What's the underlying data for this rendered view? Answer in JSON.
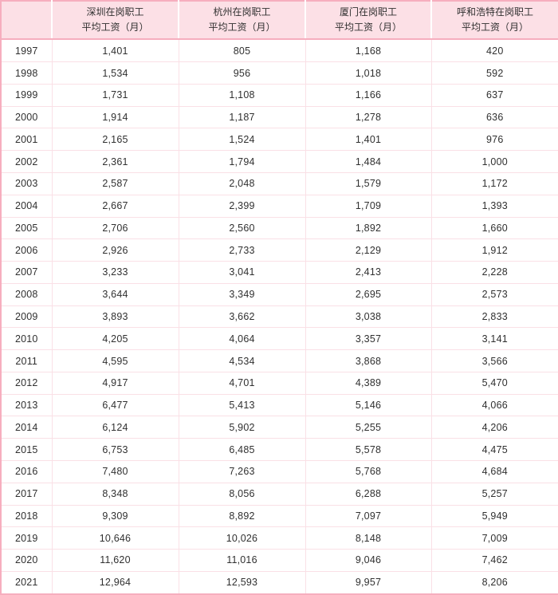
{
  "colors": {
    "header_bg": "#FCE0E6",
    "outer_border": "#F6AEBE",
    "grid_line": "#FAE0E6",
    "text": "#303030"
  },
  "table": {
    "header": {
      "cells": [
        {
          "line1": "",
          "line2": ""
        },
        {
          "line1": "深圳在岗职工",
          "line2": "平均工资（月）"
        },
        {
          "line1": "杭州在岗职工",
          "line2": "平均工资（月）"
        },
        {
          "line1": "厦门在岗职工",
          "line2": "平均工资（月）"
        },
        {
          "line1": "呼和浩特在岗职工",
          "line2": "平均工资（月）"
        }
      ]
    }
  },
  "chart_data": {
    "type": "table",
    "columns": [
      "",
      "深圳在岗职工 平均工资（月）",
      "杭州在岗职工 平均工资（月）",
      "厦门在岗职工 平均工资（月）",
      "呼和浩特在岗职工 平均工资（月）"
    ],
    "rows": [
      [
        "1997",
        "1,401",
        "805",
        "1,168",
        "420"
      ],
      [
        "1998",
        "1,534",
        "956",
        "1,018",
        "592"
      ],
      [
        "1999",
        "1,731",
        "1,108",
        "1,166",
        "637"
      ],
      [
        "2000",
        "1,914",
        "1,187",
        "1,278",
        "636"
      ],
      [
        "2001",
        "2,165",
        "1,524",
        "1,401",
        "976"
      ],
      [
        "2002",
        "2,361",
        "1,794",
        "1,484",
        "1,000"
      ],
      [
        "2003",
        "2,587",
        "2,048",
        "1,579",
        "1,172"
      ],
      [
        "2004",
        "2,667",
        "2,399",
        "1,709",
        "1,393"
      ],
      [
        "2005",
        "2,706",
        "2,560",
        "1,892",
        "1,660"
      ],
      [
        "2006",
        "2,926",
        "2,733",
        "2,129",
        "1,912"
      ],
      [
        "2007",
        "3,233",
        "3,041",
        "2,413",
        "2,228"
      ],
      [
        "2008",
        "3,644",
        "3,349",
        "2,695",
        "2,573"
      ],
      [
        "2009",
        "3,893",
        "3,662",
        "3,038",
        "2,833"
      ],
      [
        "2010",
        "4,205",
        "4,064",
        "3,357",
        "3,141"
      ],
      [
        "2011",
        "4,595",
        "4,534",
        "3,868",
        "3,566"
      ],
      [
        "2012",
        "4,917",
        "4,701",
        "4,389",
        "5,470"
      ],
      [
        "2013",
        "6,477",
        "5,413",
        "5,146",
        "4,066"
      ],
      [
        "2014",
        "6,124",
        "5,902",
        "5,255",
        "4,206"
      ],
      [
        "2015",
        "6,753",
        "6,485",
        "5,578",
        "4,475"
      ],
      [
        "2016",
        "7,480",
        "7,263",
        "5,768",
        "4,684"
      ],
      [
        "2017",
        "8,348",
        "8,056",
        "6,288",
        "5,257"
      ],
      [
        "2018",
        "9,309",
        "8,892",
        "7,097",
        "5,949"
      ],
      [
        "2019",
        "10,646",
        "10,026",
        "8,148",
        "7,009"
      ],
      [
        "2020",
        "11,620",
        "11,016",
        "9,046",
        "7,462"
      ],
      [
        "2021",
        "12,964",
        "12,593",
        "9,957",
        "8,206"
      ]
    ],
    "series_meaning": "average monthly wage of on-post staff by city and year",
    "ylim": null,
    "title": ""
  }
}
